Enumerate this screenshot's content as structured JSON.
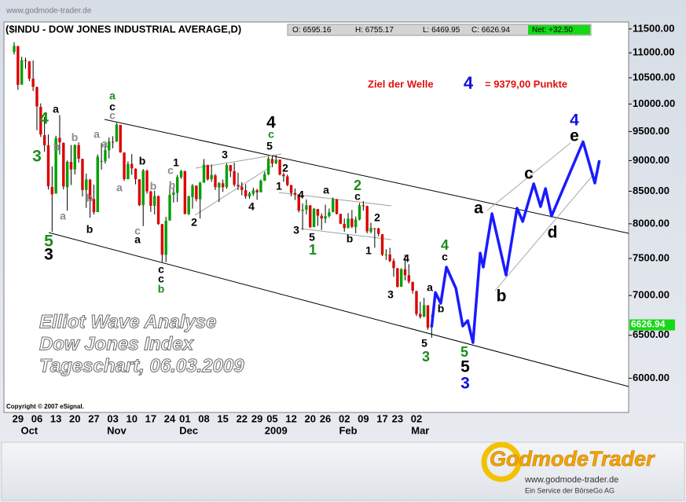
{
  "chart_data": {
    "type": "candlestick",
    "watermark": "www.godmode-trader.de",
    "title": "($INDU - DOW JONES INDUSTRIAL AVERAGE,D)",
    "quote": [
      "O: 6595.16",
      "H: 6755.17",
      "L: 6469.95",
      "C: 6626.94",
      "Net: +32.50"
    ],
    "copyright": "Copyright © 2007 eSignal.",
    "target": [
      "Ziel der Welle",
      "4",
      "= 9379,00 Punkte"
    ],
    "overlay": [
      "Elliot Wave Analyse",
      "Dow Jones Index",
      "Tageschart, 06.03.2009"
    ],
    "logo": [
      "GodmodeTrader",
      "www.godmode-trader.de",
      "Ein Service der BörseGo AG"
    ],
    "last_price_label": "6626.94",
    "last_price_color": "#16d916",
    "up_color": "#00a000",
    "down_color": "#dd0000",
    "log_scale": true,
    "ylim": [
      5630,
      11650
    ],
    "yticks": [
      {
        "value": 6000,
        "label": "6000.00"
      },
      {
        "value": 6500,
        "label": "6500.00"
      },
      {
        "value": 7000,
        "label": "7000.00"
      },
      {
        "value": 7500,
        "label": "7500.00"
      },
      {
        "value": 8000,
        "label": "8000.00"
      },
      {
        "value": 8500,
        "label": "8500.00"
      },
      {
        "value": 9000,
        "label": "9000.00"
      },
      {
        "value": 9500,
        "label": "9500.00"
      },
      {
        "value": 10000,
        "label": "10000.00"
      },
      {
        "value": 10500,
        "label": "10500.00"
      },
      {
        "value": 11000,
        "label": "11000.00"
      },
      {
        "value": 11500,
        "label": "11500.00"
      }
    ],
    "categories": [
      null,
      "29",
      null,
      null,
      null,
      null,
      "06",
      null,
      null,
      null,
      null,
      "13",
      null,
      null,
      null,
      null,
      "20",
      null,
      null,
      null,
      null,
      "27",
      null,
      null,
      null,
      null,
      "03",
      null,
      null,
      null,
      null,
      "10",
      null,
      null,
      null,
      null,
      "17",
      null,
      null,
      null,
      null,
      "24",
      null,
      null,
      null,
      "01",
      null,
      null,
      null,
      null,
      "08",
      null,
      null,
      null,
      null,
      "15",
      null,
      null,
      null,
      null,
      "22",
      null,
      null,
      null,
      "29",
      null,
      null,
      null,
      "05",
      null,
      null,
      null,
      null,
      "12",
      null,
      null,
      null,
      null,
      "20",
      null,
      null,
      null,
      "26",
      null,
      null,
      null,
      null,
      "02",
      null,
      null,
      null,
      null,
      "09",
      null,
      null,
      null,
      null,
      "17",
      null,
      null,
      null,
      "23",
      null,
      null,
      null,
      null,
      "02",
      null,
      null,
      null,
      null
    ],
    "months": [
      null,
      null,
      null,
      null,
      "Oct",
      null,
      null,
      null,
      null,
      null,
      null,
      null,
      null,
      null,
      null,
      null,
      null,
      null,
      null,
      null,
      null,
      null,
      null,
      null,
      null,
      null,
      null,
      "Nov",
      null,
      null,
      null,
      null,
      null,
      null,
      null,
      null,
      null,
      null,
      null,
      null,
      null,
      null,
      null,
      null,
      null,
      null,
      "Dec",
      null,
      null,
      null,
      null,
      null,
      null,
      null,
      null,
      null,
      null,
      null,
      null,
      null,
      null,
      null,
      null,
      null,
      null,
      null,
      null,
      null,
      null,
      "2009",
      null,
      null,
      null,
      null,
      null,
      null,
      null,
      null,
      null,
      null,
      null,
      null,
      null,
      null,
      null,
      null,
      null,
      null,
      "Feb",
      null,
      null,
      null,
      null,
      null,
      null,
      null,
      null,
      null,
      null,
      null,
      null,
      null,
      null,
      null,
      null,
      null,
      null,
      "Mar",
      null,
      null,
      null
    ],
    "open": [
      11019,
      11139,
      10368,
      10847,
      10825,
      10483,
      10322,
      9947,
      9435,
      9261,
      8568,
      8462,
      9388,
      9301,
      8565,
      8978,
      8853,
      9263,
      9028,
      8520,
      8685,
      8377,
      8176,
      8990,
      8990,
      9176,
      9320,
      9323,
      9617,
      9135,
      8696,
      8944,
      8865,
      8690,
      8282,
      8832,
      8496,
      8273,
      8423,
      7994,
      7550,
      8049,
      8445,
      8474,
      8726,
      8827,
      8147,
      8409,
      8588,
      8375,
      8636,
      8925,
      8693,
      8755,
      8560,
      8627,
      8566,
      8923,
      8825,
      8602,
      8574,
      8516,
      8416,
      8461,
      8516,
      8484,
      8666,
      8772,
      9027,
      8954,
      9016,
      8769,
      8738,
      8599,
      8474,
      8447,
      8196,
      8213,
      8279,
      7951,
      8223,
      8120,
      8077,
      8116,
      8175,
      8373,
      8149,
      8000,
      7936,
      8077,
      7951,
      8063,
      8280,
      8269,
      7883,
      7933,
      7932,
      7845,
      7555,
      7555,
      7465,
      7365,
      7115,
      7350,
      7270,
      7180,
      7056,
      6764,
      6726,
      6874,
      6595.16
    ],
    "high": [
      11220,
      11143,
      10920,
      10900,
      10835,
      10844,
      10330,
      10011,
      9760,
      9448,
      8901,
      9426,
      9795,
      9311,
      9000,
      9265,
      9275,
      9310,
      9030,
      8782,
      8700,
      8605,
      9104,
      9300,
      9300,
      9395,
      9417,
      9654,
      9620,
      9140,
      8985,
      9110,
      8870,
      8696,
      8860,
      8850,
      8510,
      8506,
      8432,
      8000,
      8104,
      8595,
      8572,
      8763,
      8843,
      8829,
      8431,
      8615,
      8596,
      8651,
      9027,
      8932,
      8934,
      8777,
      8647,
      8687,
      8950,
      8929,
      8963,
      8800,
      8645,
      8613,
      8493,
      8556,
      8538,
      8690,
      8816,
      9065,
      9088,
      9089,
      9018,
      8800,
      8769,
      8602,
      8544,
      8448,
      8312,
      8372,
      8286,
      8240,
      8225,
      8157,
      8290,
      8230,
      8402,
      8376,
      8150,
      8080,
      8162,
      8209,
      8110,
      8315,
      8344,
      8275,
      8016,
      7937,
      7940,
      7850,
      7630,
      7650,
      7500,
      7366,
      7365,
      7555,
      7420,
      7181,
      7063,
      6918,
      6970,
      6874,
      6755.17
    ],
    "low": [
      10966,
      10266,
      10365,
      10680,
      10435,
      10246,
      9525,
      9405,
      9151,
      8528,
      7882,
      8462,
      9102,
      8530,
      8197,
      8600,
      8768,
      8965,
      8417,
      8240,
      8091,
      8140,
      8176,
      8850,
      8950,
      9035,
      9208,
      9318,
      9131,
      8665,
      8690,
      8766,
      8610,
      8270,
      7966,
      8461,
      8180,
      8140,
      7985,
      7450,
      7449,
      8048,
      8324,
      8331,
      8700,
      8141,
      8130,
      8230,
      8340,
      8080,
      8636,
      8670,
      8650,
      8520,
      8330,
      8490,
      8540,
      8728,
      8573,
      8520,
      8436,
      8383,
      8383,
      8426,
      8365,
      8482,
      8666,
      8760,
      8889,
      8940,
      8754,
      8651,
      8580,
      8419,
      8363,
      8171,
      7909,
      8141,
      7939,
      7950,
      7970,
      7909,
      8010,
      8095,
      8175,
      8140,
      7995,
      7880,
      7935,
      7933,
      7860,
      8052,
      8200,
      7860,
      7860,
      7650,
      7815,
      7533,
      7480,
      7448,
      7249,
      7105,
      7113,
      7200,
      7158,
      7023,
      6736,
      6705,
      6726,
      6568,
      6469.95
    ],
    "close": [
      11143,
      10365,
      10851,
      10831,
      10482,
      10325,
      9955,
      9447,
      9258,
      8579,
      8451,
      9387,
      9310,
      8577,
      8979,
      8852,
      9265,
      9033,
      8519,
      8691,
      8378,
      8175,
      9065,
      8991,
      9180,
      9325,
      9319,
      9625,
      9139,
      8695,
      8943,
      8870,
      8693,
      8283,
      8835,
      8497,
      8273,
      8424,
      7997,
      7552,
      8046,
      8443,
      8479,
      8727,
      8829,
      8149,
      8419,
      8591,
      8376,
      8635,
      8934,
      8691,
      8761,
      8565,
      8629,
      8564,
      8924,
      8824,
      8604,
      8579,
      8519,
      8419,
      8468,
      8515,
      8483,
      8668,
      8776,
      9034,
      8952,
      9015,
      8769,
      8742,
      8599,
      8474,
      8448,
      8200,
      8212,
      8281,
      7949,
      8228,
      8123,
      8078,
      8116,
      8174,
      8375,
      8149,
      8001,
      7936,
      8078,
      7956,
      8063,
      8280,
      8270,
      7888,
      7939,
      7932,
      7850,
      7553,
      7556,
      7465,
      7366,
      7115,
      7351,
      7270,
      7182,
      7063,
      6763,
      6726,
      6876,
      6594,
      6626.94
    ],
    "projection": {
      "color": "#1a1aff",
      "x": [
        110,
        111,
        112.4,
        113.9,
        116.4,
        118.2,
        119.5,
        120.9,
        122.8,
        123.6,
        125.9,
        129.6,
        132.5,
        134,
        136.9,
        138.7,
        140,
        141.6,
        149.9,
        153,
        154.2
      ],
      "values": [
        6600,
        7040,
        6900,
        7380,
        7093,
        6613,
        6680,
        6412,
        7576,
        7380,
        8152,
        7272,
        8236,
        8034,
        8619,
        8260,
        8543,
        8117,
        9320,
        8631,
        9005
      ]
    },
    "wave_labels": [
      "a",
      "4",
      "3",
      "b",
      "b",
      "a",
      "5",
      "3",
      "b",
      "b",
      "a",
      "a",
      "c",
      "c",
      "a",
      "a",
      "b",
      "b",
      "c",
      "a",
      "c",
      "c",
      "b",
      "c",
      "b",
      "1",
      "2",
      "3",
      "4",
      "4",
      "c",
      "5",
      "2",
      "1",
      "4",
      "3",
      "5",
      "1",
      "a",
      "b",
      "2",
      "c",
      "2",
      "1",
      "4",
      "3",
      "a",
      "b",
      "4",
      "c",
      "5",
      "3",
      "5",
      "5",
      "3",
      "a",
      "b",
      "c",
      "d",
      "e",
      "4"
    ]
  }
}
